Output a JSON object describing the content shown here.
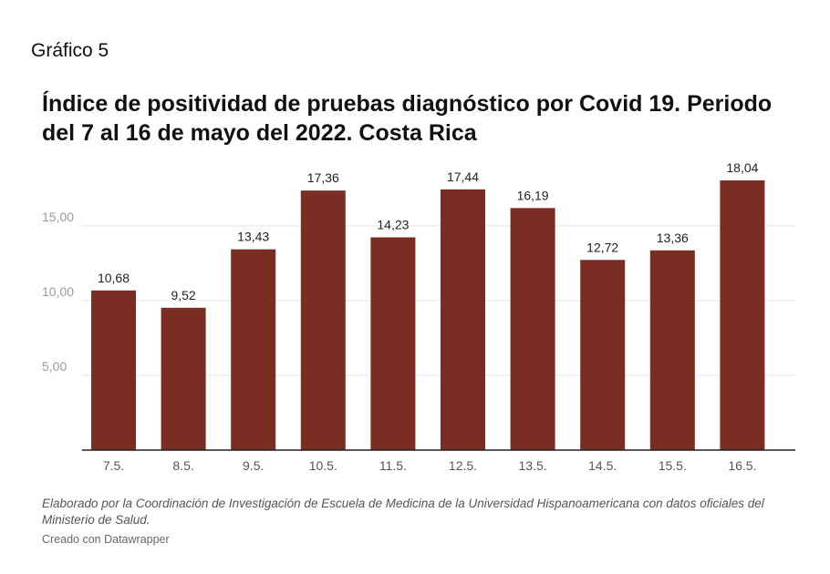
{
  "header": {
    "label": "Gráfico 5",
    "title": "Índice de positividad de pruebas diagnóstico por Covid 19. Periodo del 7 al 16 de mayo del 2022. Costa Rica"
  },
  "footer": {
    "note": "Elaborado por la Coordinación de Investigación de Escuela de Medicina de la Universidad Hispanoamericana con datos oficiales del Ministerio de Salud.",
    "credit": "Creado con Datawrapper"
  },
  "colors": {
    "bar": "#7a2d22",
    "grid": "#e4e4e4",
    "axis": "#222222",
    "tick_label": "#9a9a9a",
    "category_label": "#555555",
    "value_label": "#222222"
  },
  "chart_data": {
    "type": "bar",
    "categories": [
      "7.5.",
      "8.5.",
      "9.5.",
      "10.5.",
      "11.5.",
      "12.5.",
      "13.5.",
      "14.5.",
      "15.5.",
      "16.5."
    ],
    "values": [
      10.68,
      9.52,
      13.43,
      17.36,
      14.23,
      17.44,
      16.19,
      12.72,
      13.36,
      18.04
    ],
    "value_labels": [
      "10,68",
      "9,52",
      "13,43",
      "17,36",
      "14,23",
      "17,44",
      "16,19",
      "12,72",
      "13,36",
      "18,04"
    ],
    "y_ticks": [
      5,
      10,
      15
    ],
    "y_tick_labels": [
      "5,00",
      "10,00",
      "15,00"
    ],
    "ylim": [
      0,
      18.04
    ],
    "grid": true,
    "legend": "none"
  }
}
